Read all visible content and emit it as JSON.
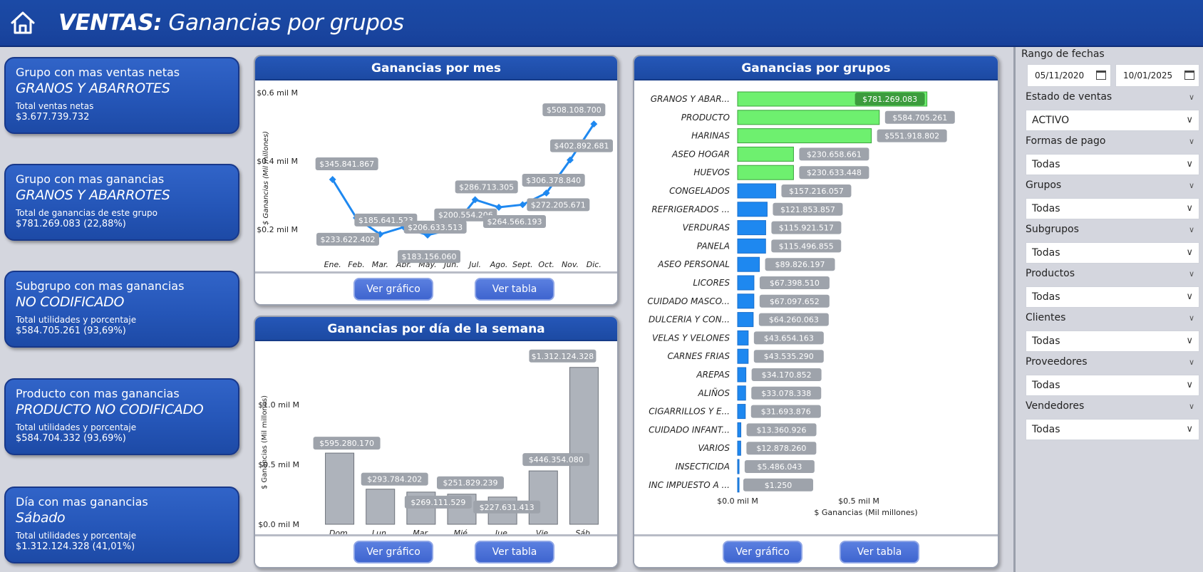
{
  "header": {
    "title_bold": "VENTAS:",
    "title_rest": " Ganancias por grupos",
    "home_icon": "home-icon"
  },
  "kpis": [
    {
      "title": "Grupo con mas ventas netas",
      "value": "GRANOS Y ABARROTES",
      "sub": "Total ventas netas",
      "num": "$3.677.739.732"
    },
    {
      "title": "Grupo con mas ganancias",
      "value": "GRANOS Y ABARROTES",
      "sub": "Total de ganancias de este grupo",
      "num": "$781.269.083 (22,88%)"
    },
    {
      "title": "Subgrupo con mas ganancias",
      "value": "NO CODIFICADO",
      "sub": "Total utilidades y porcentaje",
      "num": "$584.705.261 (93,69%)"
    },
    {
      "title": "Producto con mas ganancias",
      "value": "PRODUCTO NO CODIFICADO",
      "sub": "Total utilidades y porcentaje",
      "num": "$584.704.332 (93,69%)"
    },
    {
      "title": "Día con mas ganancias",
      "value": "Sábado",
      "sub": "Total utilidades y porcentaje",
      "num": "$1.312.124.328 (41,01%)"
    }
  ],
  "buttons": {
    "chart": "Ver gráfico",
    "table": "Ver tabla"
  },
  "chart_data": [
    {
      "type": "line",
      "title": "Ganancias por mes",
      "ylabel": "$ Ganancias (Mil millones)",
      "yticks": [
        "$0.2 mil M",
        "$0.4 mil M",
        "$0.6 mil M"
      ],
      "ytick_values": [
        200000000,
        400000000,
        600000000
      ],
      "ylim": [
        100000000,
        600000000
      ],
      "categories": [
        "Ene.",
        "Feb.",
        "Mar.",
        "Abr.",
        "May.",
        "Jun.",
        "Jul.",
        "Ago.",
        "Sept.",
        "Oct.",
        "Nov.",
        "Dic."
      ],
      "values": [
        345841867,
        233622402,
        185641523,
        206633513,
        183156060,
        200554206,
        286713305,
        264566193,
        272205671,
        306378840,
        402892681,
        508108700
      ],
      "labels": [
        "$345.841.867",
        "$233.622.402",
        "$185.641.523",
        "$206.633.513",
        "$183.156.060",
        "$200.554.206",
        "$286.713.305",
        "$264.566.193",
        "$272.205.671",
        "$306.378.840",
        "$402.892.681",
        "$508.108.700"
      ],
      "color": "#1e88f0"
    },
    {
      "type": "bar",
      "title": "Ganancias por día de la semana",
      "ylabel": "$ Ganancias (Mil millones)",
      "yticks": [
        "$0.0 mil M",
        "$0.5 mil M",
        "$1.0 mil M"
      ],
      "ytick_values": [
        0,
        500000000,
        1000000000
      ],
      "ylim": [
        0,
        1400000000
      ],
      "categories": [
        "Dom.",
        "Lun.",
        "Mar.",
        "Mié.",
        "Jue.",
        "Vie.",
        "Sáb."
      ],
      "values": [
        595280170,
        293784202,
        269111529,
        251829239,
        227631413,
        446354080,
        1312124328
      ],
      "labels": [
        "$595.280.170",
        "$293.784.202",
        "$269.111.529",
        "$251.829.239",
        "$227.631.413",
        "$446.354.080",
        "$1.312.124.328"
      ],
      "color": "#aeb3bb"
    },
    {
      "type": "bar",
      "orientation": "horizontal",
      "title": "Ganancias por grupos",
      "xlabel": "$ Ganancias (Mil millones)",
      "xticks": [
        "$0.0 mil M",
        "$0.5 mil M"
      ],
      "xtick_values": [
        0,
        500000000
      ],
      "xlim": [
        0,
        1000000000
      ],
      "categories": [
        "GRANOS Y ABAR...",
        "PRODUCTO",
        "HARINAS",
        "ASEO HOGAR",
        "HUEVOS",
        "CONGELADOS",
        "REFRIGERADOS ...",
        "VERDURAS",
        "PANELA",
        "ASEO PERSONAL",
        "LICORES",
        "CUIDADO MASCO...",
        "DULCERIA Y CON...",
        "VELAS Y VELONES",
        "CARNES FRIAS",
        "AREPAS",
        "ALIÑOS",
        "CIGARRILLOS Y E...",
        "CUIDADO INFANT...",
        "VARIOS",
        "INSECTICIDA",
        "INC IMPUESTO A ..."
      ],
      "values": [
        781269083,
        584705261,
        551918802,
        230658661,
        230633448,
        157216057,
        121853857,
        115921517,
        115496855,
        89826197,
        67398510,
        67097652,
        64260063,
        43654163,
        43535290,
        34170852,
        33078338,
        31693876,
        13360926,
        12878260,
        5486043,
        1250
      ],
      "labels": [
        "$781.269.083",
        "$584.705.261",
        "$551.918.802",
        "$230.658.661",
        "$230.633.448",
        "$157.216.057",
        "$121.853.857",
        "$115.921.517",
        "$115.496.855",
        "$89.826.197",
        "$67.398.510",
        "$67.097.652",
        "$64.260.063",
        "$43.654.163",
        "$43.535.290",
        "$34.170.852",
        "$33.078.338",
        "$31.693.876",
        "$13.360.926",
        "$12.878.260",
        "$5.486.043",
        "$1.250"
      ],
      "highlight_count": 5,
      "colors": {
        "highlight": "#6ef06f",
        "normal": "#1e88f0"
      }
    }
  ],
  "sidebar": {
    "date_label": "Rango de fechas",
    "date_from": "05/11/2020",
    "date_to": "10/01/2025",
    "filters": [
      {
        "label": "Estado de ventas",
        "value": "ACTIVO"
      },
      {
        "label": "Formas de pago",
        "value": "Todas"
      },
      {
        "label": "Grupos",
        "value": "Todas"
      },
      {
        "label": "Subgrupos",
        "value": "Todas"
      },
      {
        "label": "Productos",
        "value": "Todas"
      },
      {
        "label": "Clientes",
        "value": "Todas"
      },
      {
        "label": "Proveedores",
        "value": "Todas"
      },
      {
        "label": "Vendedores",
        "value": "Todas"
      }
    ]
  }
}
